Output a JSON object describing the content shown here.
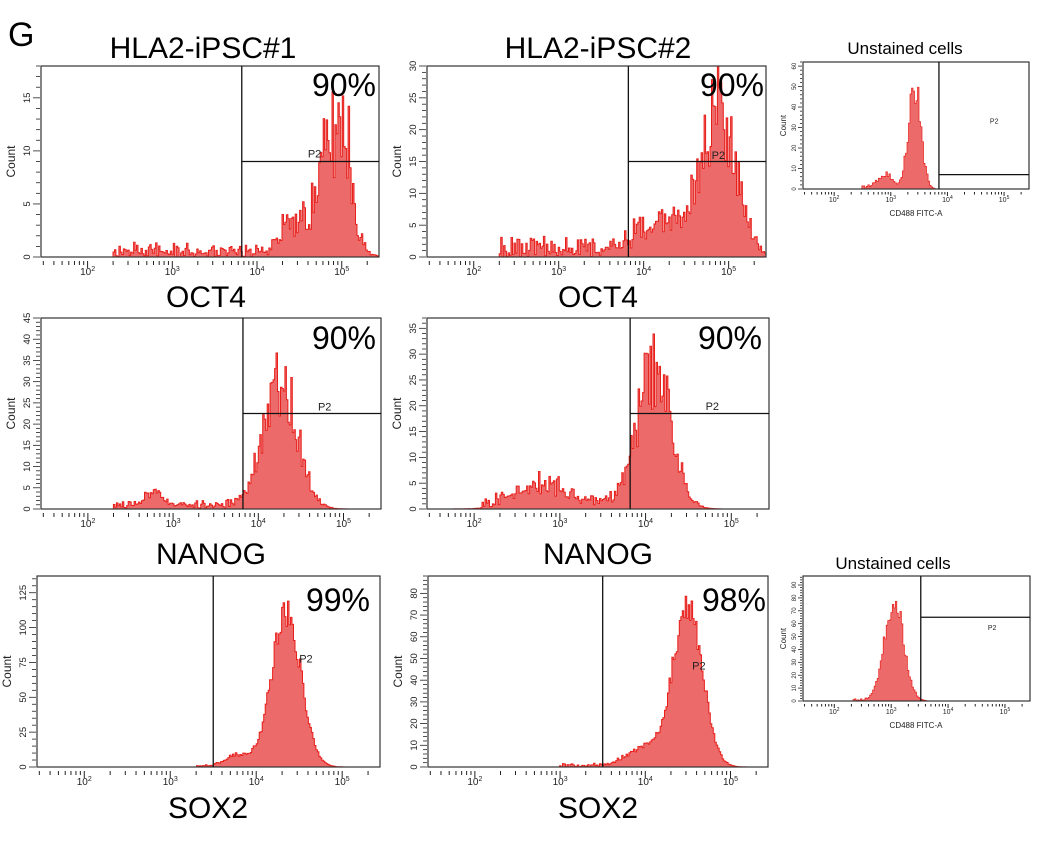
{
  "figure": {
    "panel_letter": "G"
  },
  "colors": {
    "fill": "#ec6a6a",
    "stroke": "#e8201c",
    "axis": "#333333"
  },
  "chart_data": [
    {
      "type": "area",
      "title": "HLA2-iPSC#1",
      "xlabel": "OCT4",
      "ylabel": "Count",
      "percent": "90%",
      "x_scale": "log10",
      "xlim_log10": [
        1.45,
        5.44
      ],
      "x_major_exponents": [
        2,
        3,
        4,
        5
      ],
      "ylim": [
        0,
        18
      ],
      "ytick_step": 5,
      "gate": {
        "label": "P2",
        "x_log10": 3.82,
        "y": 9,
        "label_at": [
          4.6,
          9.4
        ]
      },
      "distribution": {
        "components": [
          [
            4.9,
            0.17,
            11
          ],
          [
            5.05,
            0.07,
            5
          ],
          [
            4.45,
            0.15,
            3
          ]
        ],
        "uniform": [
          2.3,
          4.4,
          0.7
        ],
        "noise": 0.9,
        "seed": 11
      }
    },
    {
      "type": "area",
      "title": "HLA2-iPSC#2",
      "xlabel": "OCT4",
      "ylabel": "Count",
      "percent": "90%",
      "x_scale": "log10",
      "xlim_log10": [
        1.45,
        5.44
      ],
      "x_major_exponents": [
        2,
        3,
        4,
        5
      ],
      "ylim": [
        0,
        30
      ],
      "ytick_step": 5,
      "gate": {
        "label": "P2",
        "x_log10": 3.82,
        "y": 15,
        "label_at": [
          4.8,
          15.4
        ]
      },
      "distribution": {
        "components": [
          [
            4.9,
            0.2,
            23
          ],
          [
            4.3,
            0.3,
            6
          ]
        ],
        "uniform": [
          2.3,
          4.0,
          1.8
        ],
        "noise": 0.7,
        "seed": 23
      }
    },
    {
      "type": "area",
      "title": "Unstained cells",
      "xlabel": "CD488 FITC-A",
      "ylabel": "Count",
      "x_scale": "log10",
      "xlim_log10": [
        1.45,
        5.44
      ],
      "x_major_exponents": [
        2,
        3,
        4,
        5
      ],
      "ylim": [
        0,
        62
      ],
      "ytick_step": 10,
      "gate": {
        "label": "P2",
        "x_log10": 3.85,
        "y": 7,
        "label_at": [
          4.75,
          32
        ]
      },
      "distribution": {
        "components": [
          [
            3.42,
            0.11,
            50
          ],
          [
            2.9,
            0.14,
            6
          ]
        ],
        "uniform": [
          2.5,
          3.0,
          1
        ],
        "noise": 0.4,
        "seed": 5
      }
    },
    {
      "type": "area",
      "xlabel": "NANOG",
      "ylabel": "Count",
      "percent": "90%",
      "x_scale": "log10",
      "xlim_log10": [
        1.45,
        5.44
      ],
      "x_major_exponents": [
        2,
        3,
        4,
        5
      ],
      "ylim": [
        0,
        45
      ],
      "ytick_step": 5,
      "gate": {
        "label": "P2",
        "x_log10": 3.82,
        "y": 22.5,
        "label_at": [
          4.7,
          23.2
        ]
      },
      "distribution": {
        "components": [
          [
            4.25,
            0.2,
            31
          ],
          [
            2.78,
            0.12,
            3.5
          ]
        ],
        "uniform": [
          2.3,
          3.85,
          1
        ],
        "noise": 0.6,
        "seed": 37
      }
    },
    {
      "type": "area",
      "xlabel": "NANOG",
      "ylabel": "Count",
      "percent": "90%",
      "x_scale": "log10",
      "xlim_log10": [
        1.45,
        5.44
      ],
      "x_major_exponents": [
        2,
        3,
        4,
        5
      ],
      "ylim": [
        0,
        37
      ],
      "ytick_step": 5,
      "gate": {
        "label": "P2",
        "x_log10": 3.82,
        "y": 18.5,
        "label_at": [
          4.7,
          19.2
        ]
      },
      "distribution": {
        "components": [
          [
            4.1,
            0.2,
            27
          ],
          [
            2.8,
            0.3,
            3.5
          ]
        ],
        "uniform": [
          2.1,
          3.85,
          1.4
        ],
        "noise": 0.6,
        "seed": 41
      }
    },
    {
      "type": "area",
      "xlabel": "SOX2",
      "ylabel": "Count",
      "percent": "99%",
      "x_scale": "log10",
      "xlim_log10": [
        1.45,
        5.44
      ],
      "x_major_exponents": [
        2,
        3,
        4,
        5
      ],
      "ylim": [
        0,
        137
      ],
      "ytick_step": 25,
      "gate": {
        "label": "P2",
        "x_log10": 3.5,
        "y": null,
        "label_at": [
          4.5,
          75
        ]
      },
      "distribution": {
        "components": [
          [
            4.35,
            0.17,
            112
          ],
          [
            3.8,
            0.15,
            8
          ]
        ],
        "uniform": [
          3.3,
          3.8,
          1
        ],
        "noise": 0.2,
        "seed": 53
      }
    },
    {
      "type": "area",
      "xlabel": "SOX2",
      "ylabel": "Count",
      "percent": "98%",
      "x_scale": "log10",
      "xlim_log10": [
        1.45,
        5.44
      ],
      "x_major_exponents": [
        2,
        3,
        4,
        5
      ],
      "ylim": [
        0,
        88
      ],
      "ytick_step": 10,
      "gate": {
        "label": "P2",
        "x_log10": 3.5,
        "y": null,
        "label_at": [
          4.55,
          45
        ]
      },
      "distribution": {
        "components": [
          [
            4.5,
            0.17,
            76
          ],
          [
            4.0,
            0.2,
            9
          ]
        ],
        "uniform": [
          3.0,
          3.8,
          1
        ],
        "noise": 0.25,
        "seed": 67
      }
    },
    {
      "type": "area",
      "title": "Unstained cells",
      "xlabel": "CD488 FITC-A",
      "ylabel": "Count",
      "x_scale": "log10",
      "xlim_log10": [
        1.45,
        5.44
      ],
      "x_major_exponents": [
        2,
        3,
        4,
        5
      ],
      "ylim": [
        0,
        97
      ],
      "ytick_step": 10,
      "gate": {
        "label": "P2",
        "x_log10": 3.52,
        "y": 65,
        "label_at": [
          4.7,
          55
        ]
      },
      "distribution": {
        "components": [
          [
            3.05,
            0.17,
            78
          ]
        ],
        "uniform": [
          2.3,
          2.7,
          1
        ],
        "noise": 0.25,
        "seed": 79
      }
    }
  ]
}
